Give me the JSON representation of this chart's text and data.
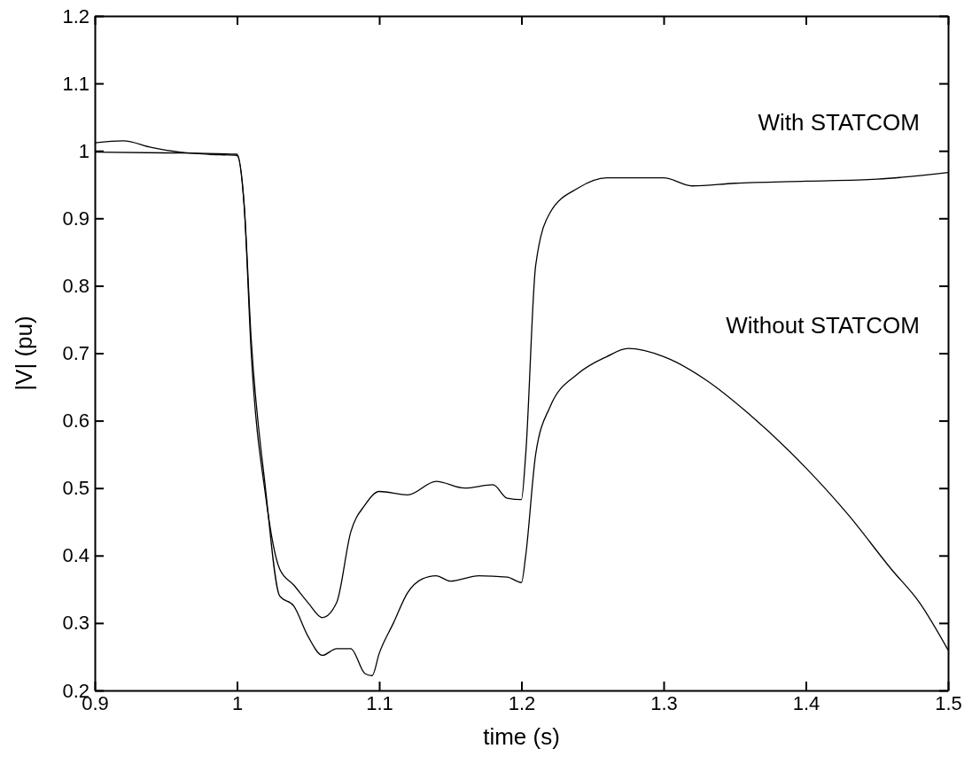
{
  "chart_data": {
    "type": "line",
    "xlabel": "time (s)",
    "ylabel": "|V| (pu)",
    "xlim": [
      0.9,
      1.5
    ],
    "xticks": [
      0.9,
      1,
      1.1,
      1.2,
      1.3,
      1.4,
      1.5
    ],
    "ylim": [
      0.2,
      1.2
    ],
    "yticks": [
      0.2,
      0.3,
      0.4,
      0.5,
      0.6,
      0.7,
      0.8,
      0.9,
      1,
      1.1,
      1.2
    ],
    "grid": false,
    "marker": "none",
    "line_style": "solid",
    "series": [
      {
        "name": "With STATCOM",
        "color": "#000000",
        "x": [
          0.9,
          0.95,
          1.0,
          1.005,
          1.01,
          1.02,
          1.03,
          1.04,
          1.05,
          1.06,
          1.07,
          1.08,
          1.09,
          1.1,
          1.12,
          1.14,
          1.16,
          1.18,
          1.19,
          1.2,
          1.203,
          1.21,
          1.22,
          1.24,
          1.26,
          1.28,
          1.3,
          1.32,
          1.35,
          1.4,
          1.45,
          1.5
        ],
        "values": [
          0.998,
          0.997,
          0.995,
          0.92,
          0.7,
          0.49,
          0.38,
          0.356,
          0.33,
          0.308,
          0.33,
          0.435,
          0.475,
          0.495,
          0.49,
          0.51,
          0.5,
          0.505,
          0.485,
          0.483,
          0.55,
          0.83,
          0.908,
          0.945,
          0.96,
          0.96,
          0.96,
          0.948,
          0.952,
          0.955,
          0.958,
          0.968
        ]
      },
      {
        "name": "Without STATCOM",
        "color": "#000000",
        "x": [
          0.9,
          0.92,
          0.94,
          0.96,
          0.98,
          1.0,
          1.005,
          1.01,
          1.02,
          1.03,
          1.04,
          1.05,
          1.06,
          1.07,
          1.08,
          1.09,
          1.095,
          1.1,
          1.11,
          1.12,
          1.13,
          1.14,
          1.15,
          1.17,
          1.19,
          1.2,
          1.203,
          1.21,
          1.22,
          1.24,
          1.26,
          1.275,
          1.3,
          1.33,
          1.36,
          1.4,
          1.43,
          1.46,
          1.48,
          1.5
        ],
        "values": [
          1.012,
          1.015,
          1.005,
          0.998,
          0.995,
          0.993,
          0.92,
          0.72,
          0.5,
          0.34,
          0.325,
          0.28,
          0.252,
          0.262,
          0.262,
          0.225,
          0.222,
          0.255,
          0.3,
          0.345,
          0.365,
          0.37,
          0.362,
          0.37,
          0.368,
          0.36,
          0.4,
          0.55,
          0.62,
          0.67,
          0.695,
          0.707,
          0.695,
          0.66,
          0.61,
          0.53,
          0.46,
          0.38,
          0.33,
          0.26
        ]
      }
    ]
  }
}
